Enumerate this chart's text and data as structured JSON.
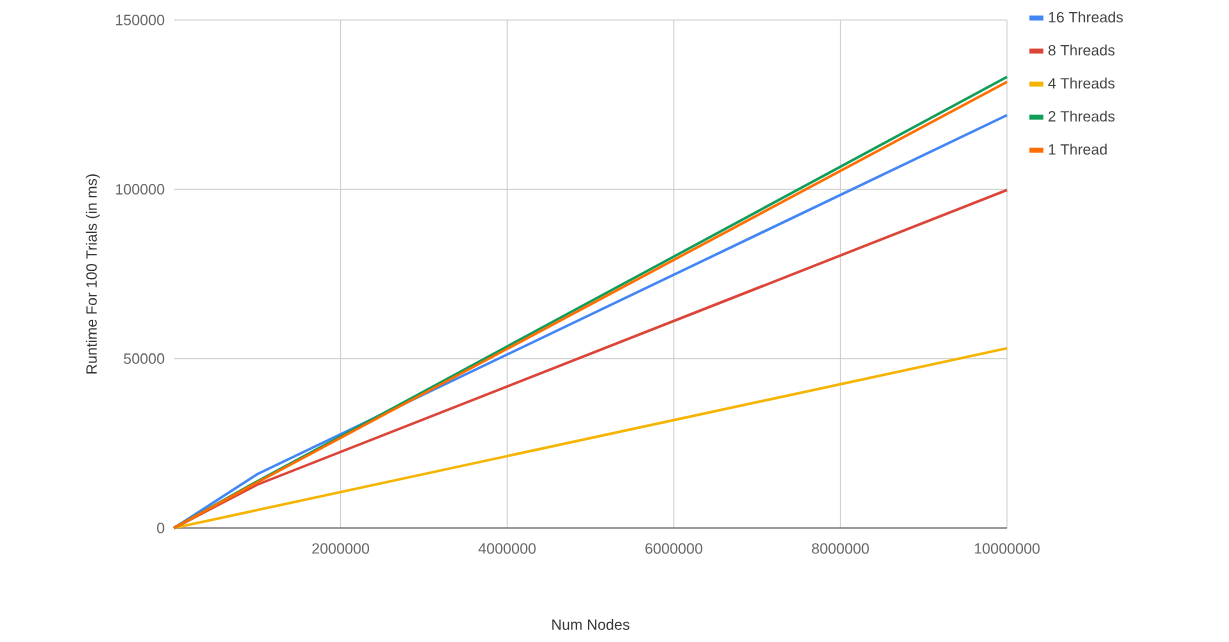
{
  "chart_data": {
    "type": "line",
    "xlabel": "Num Nodes",
    "ylabel": "Runtime For 100 Trials (in ms)",
    "x": [
      0,
      1000000,
      10000000
    ],
    "series": [
      {
        "name": "16 Threads",
        "color": "#4285f4",
        "values": [
          0,
          15900,
          121900
        ]
      },
      {
        "name": "8 Threads",
        "color": "#db4437",
        "values": [
          0,
          12800,
          99800
        ]
      },
      {
        "name": "4 Threads",
        "color": "#f4b400",
        "values": [
          0,
          5300,
          53100
        ]
      },
      {
        "name": "2 Threads",
        "color": "#0f9d58",
        "values": [
          0,
          13800,
          133200
        ]
      },
      {
        "name": "1 Thread",
        "color": "#ff6d01",
        "values": [
          0,
          13500,
          131700
        ]
      }
    ],
    "xlim": [
      0,
      10000000
    ],
    "ylim": [
      0,
      150000
    ],
    "xticks": [
      2000000,
      4000000,
      6000000,
      8000000,
      10000000
    ],
    "yticks": [
      0,
      50000,
      100000,
      150000
    ],
    "grid": true,
    "legend": "top right",
    "marker": "none",
    "line_style": "solid"
  }
}
